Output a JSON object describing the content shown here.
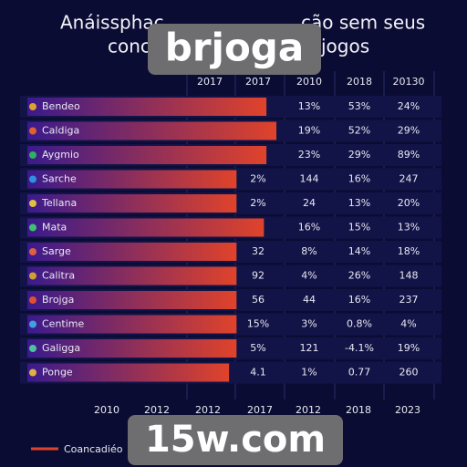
{
  "chart_data": {
    "type": "bar",
    "orientation": "horizontal",
    "title": [
      "Anáissphac",
      "ção sem seus"
    ],
    "subtitle": [
      "conc",
      "jogos"
    ],
    "columns": [
      "2017",
      "2017",
      "2010",
      "2018",
      "20130"
    ],
    "categories": [
      "Bendeo",
      "Caldiga",
      "Aygmio",
      "Sarche",
      "Tellana",
      "Mata",
      "Sarge",
      "Calitra",
      "Brojga",
      "Centime",
      "Galigga",
      "Ponge"
    ],
    "values": [
      96,
      100,
      96,
      84,
      84,
      95,
      84,
      84,
      84,
      84,
      84,
      81
    ],
    "xlim": [
      0,
      100
    ],
    "table": [
      [
        null,
        null,
        "13%",
        "53%",
        "24%"
      ],
      [
        null,
        null,
        "19%",
        "52%",
        "29%"
      ],
      [
        null,
        null,
        "23%",
        "29%",
        "89%"
      ],
      [
        null,
        "2%",
        "144",
        "16%",
        "247"
      ],
      [
        null,
        "2%",
        "24",
        "13%",
        "20%"
      ],
      [
        null,
        null,
        "16%",
        "15%",
        "13%"
      ],
      [
        null,
        "32",
        "8%",
        "14%",
        "18%"
      ],
      [
        null,
        "92",
        "4%",
        "26%",
        "148"
      ],
      [
        null,
        "56",
        "44",
        "16%",
        "237"
      ],
      [
        null,
        "15%",
        "3%",
        "0.8%",
        "4%"
      ],
      [
        null,
        "5%",
        "121",
        "-4.1%",
        "19%"
      ],
      [
        null,
        "4.1",
        "1%",
        "0.77",
        "260"
      ]
    ],
    "x_axis_labels": [
      "2010",
      "2012",
      "2012",
      "2017",
      "2012",
      "2018",
      "2023"
    ],
    "legend": "Coancadiéo",
    "bar_colors": [
      "#3a1a8c",
      "#e0432a"
    ],
    "icon_colors": [
      "#e0a030",
      "#e06030",
      "#30b060",
      "#3090e0",
      "#e0c040",
      "#40c070",
      "#e06040",
      "#d0a030",
      "#e05030",
      "#40a0e0",
      "#50c0a0",
      "#e0b040"
    ]
  },
  "watermarks": [
    "brjoga",
    "15w.com"
  ]
}
